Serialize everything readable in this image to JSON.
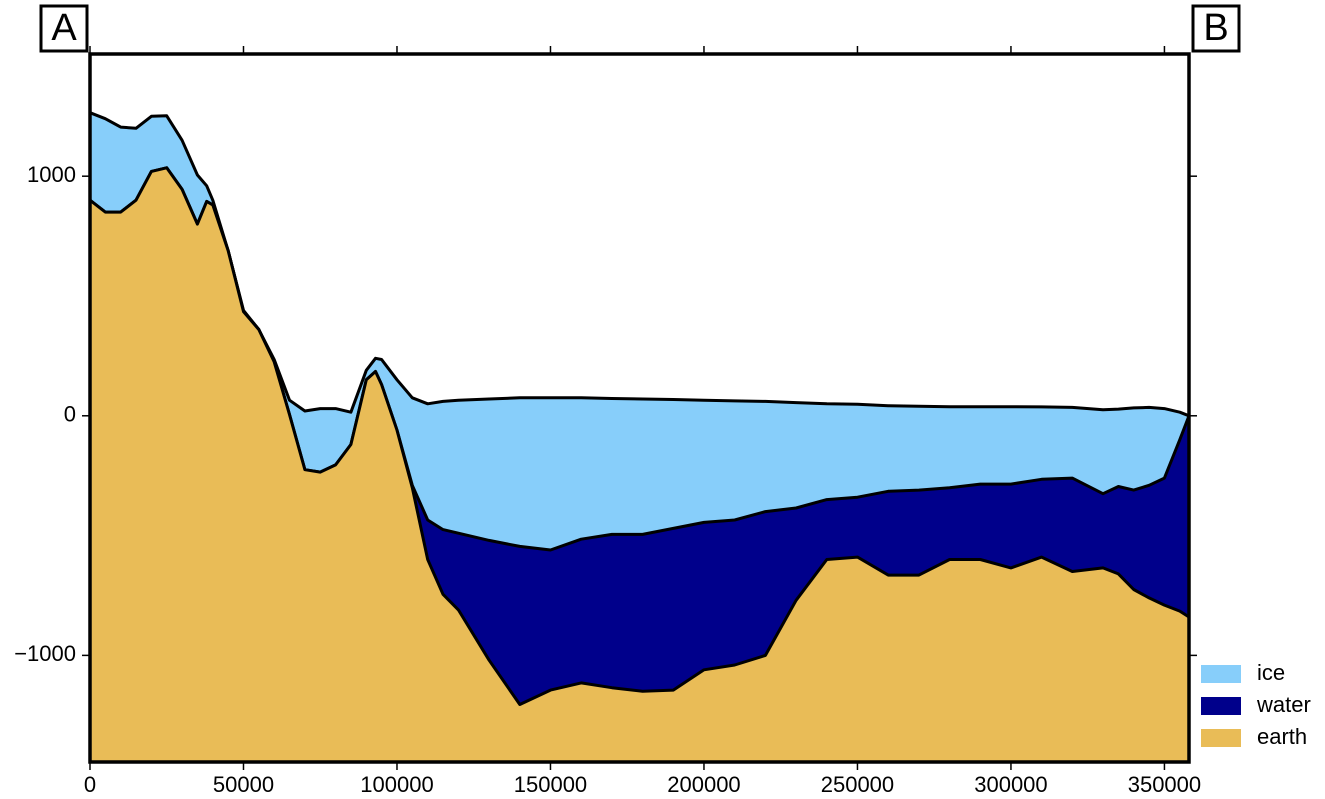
{
  "chart_data": {
    "type": "area",
    "annotations": [
      "A",
      "B"
    ],
    "x": [
      0,
      5000,
      10000,
      15000,
      20000,
      25000,
      30000,
      35000,
      38000,
      40000,
      45000,
      50000,
      55000,
      60000,
      65000,
      70000,
      75000,
      80000,
      85000,
      90000,
      93000,
      95000,
      100000,
      105000,
      110000,
      115000,
      120000,
      130000,
      140000,
      150000,
      160000,
      170000,
      180000,
      190000,
      200000,
      210000,
      220000,
      230000,
      240000,
      250000,
      260000,
      270000,
      280000,
      290000,
      300000,
      310000,
      320000,
      330000,
      335000,
      340000,
      345000,
      350000,
      355000,
      358000
    ],
    "series": [
      {
        "name": "ice",
        "color": "#87cefa",
        "values": [
          1265,
          1240,
          1205,
          1200,
          1250,
          1252,
          1150,
          1005,
          960,
          900,
          690,
          440,
          360,
          235,
          65,
          20,
          30,
          30,
          15,
          190,
          240,
          235,
          150,
          75,
          50,
          60,
          65,
          70,
          75,
          75,
          75,
          72,
          70,
          68,
          65,
          62,
          60,
          55,
          50,
          48,
          42,
          40,
          38,
          38,
          38,
          37,
          35,
          25,
          28,
          33,
          35,
          30,
          15,
          0
        ]
      },
      {
        "name": "water",
        "color": "#00008b",
        "values": [
          900,
          850,
          850,
          900,
          1020,
          1035,
          945,
          800,
          895,
          880,
          690,
          435,
          360,
          225,
          5,
          -225,
          -235,
          -205,
          -120,
          150,
          185,
          130,
          -60,
          -290,
          -435,
          -475,
          -490,
          -520,
          -545,
          -560,
          -515,
          -495,
          -495,
          -470,
          -445,
          -435,
          -400,
          -385,
          -350,
          -340,
          -315,
          -310,
          -300,
          -285,
          -285,
          -265,
          -260,
          -325,
          -295,
          -310,
          -290,
          -260,
          -100,
          0
        ]
      },
      {
        "name": "earth",
        "color": "#e9bc57",
        "values": [
          900,
          850,
          850,
          900,
          1020,
          1035,
          945,
          800,
          895,
          880,
          690,
          435,
          360,
          225,
          5,
          -225,
          -235,
          -205,
          -120,
          150,
          185,
          130,
          -60,
          -300,
          -600,
          -745,
          -810,
          -1020,
          -1205,
          -1145,
          -1115,
          -1135,
          -1150,
          -1145,
          -1060,
          -1040,
          -1000,
          -770,
          -600,
          -590,
          -665,
          -665,
          -600,
          -600,
          -635,
          -590,
          -650,
          -635,
          -660,
          -725,
          -760,
          -790,
          -815,
          -840
        ]
      }
    ],
    "xlim": [
      0,
      358000
    ],
    "xticks": [
      0,
      50000,
      100000,
      150000,
      200000,
      250000,
      300000,
      350000
    ],
    "ylim": [
      -1445,
      1510
    ],
    "yticks": [
      {
        "value": -1000,
        "label": "−1000"
      },
      0,
      1000
    ],
    "legend": "bottom-right"
  }
}
